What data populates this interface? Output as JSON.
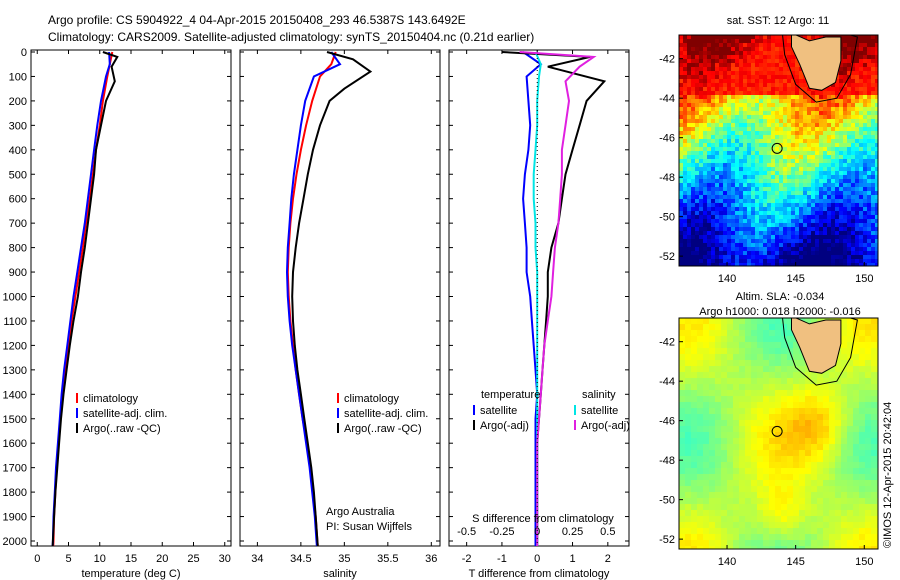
{
  "header": {
    "line1": "Argo profile: CS 5904922_4 04-Apr-2015 20150408_293 46.5387S 143.6492E",
    "line2": "Climatology: CARS2009. Satellite-adjusted climatology: synTS_20150404.nc (0.21d earlier)"
  },
  "chart_data": [
    {
      "type": "line",
      "panel": "temperature",
      "xlabel": "temperature (deg C)",
      "ylabel": "",
      "xlim": [
        -1,
        31
      ],
      "ylim": [
        2060,
        0
      ],
      "y_reversed": true,
      "xticks": [
        "0",
        "5",
        "10",
        "15",
        "20",
        "25",
        "30"
      ],
      "yticks": [
        "0",
        "100",
        "200",
        "300",
        "400",
        "500",
        "600",
        "700",
        "800",
        "900",
        "1000",
        "1100",
        "1200",
        "1300",
        "1400",
        "1500",
        "1600",
        "1700",
        "1800",
        "1900",
        "2000"
      ],
      "legend": [
        "climatology",
        "satellite-adj. clim.",
        "Argo(..raw -QC)"
      ],
      "series": [
        {
          "name": "climatology",
          "color": "#ff0000",
          "x": [
            12.0,
            11.6,
            11.2,
            10.5,
            10.0,
            9.4,
            8.9,
            8.4,
            7.8,
            7.3,
            6.7,
            6.1,
            5.5,
            5.0,
            4.5,
            4.1,
            3.7,
            3.4,
            3.1,
            2.9,
            2.7,
            2.6,
            2.5
          ],
          "y": [
            0,
            50,
            100,
            200,
            300,
            400,
            500,
            600,
            700,
            800,
            900,
            1000,
            1100,
            1200,
            1300,
            1400,
            1500,
            1600,
            1700,
            1800,
            1900,
            2000,
            2050
          ]
        },
        {
          "name": "satellite-adj. clim.",
          "color": "#0000ff",
          "x": [
            11.5,
            11.6,
            11.0,
            10.2,
            9.6,
            9.1,
            8.6,
            8.1,
            7.6,
            7.0,
            6.4,
            5.8,
            5.3,
            4.8,
            4.3,
            3.9,
            3.6,
            3.3,
            3.0,
            2.8,
            2.6,
            2.5,
            2.4
          ],
          "y": [
            0,
            50,
            100,
            200,
            300,
            400,
            500,
            600,
            700,
            800,
            900,
            1000,
            1100,
            1200,
            1300,
            1400,
            1500,
            1600,
            1700,
            1800,
            1900,
            2000,
            2050
          ]
        },
        {
          "name": "Argo(..raw -QC)",
          "color": "#000000",
          "x": [
            10.5,
            12.8,
            11.9,
            12.4,
            11.0,
            10.2,
            9.4,
            9.1,
            8.6,
            8.1,
            7.6,
            7.0,
            6.5,
            5.8,
            5.2,
            4.7,
            4.2,
            3.8,
            3.5,
            3.2,
            2.9,
            2.7,
            2.5,
            2.4
          ],
          "y": [
            0,
            20,
            60,
            120,
            200,
            300,
            400,
            500,
            600,
            700,
            800,
            900,
            1000,
            1100,
            1200,
            1300,
            1400,
            1500,
            1600,
            1700,
            1800,
            1900,
            2000,
            2050
          ]
        }
      ]
    },
    {
      "type": "line",
      "panel": "salinity",
      "xlabel": "salinity",
      "xlim": [
        33.8,
        36.1
      ],
      "ylim": [
        2060,
        0
      ],
      "y_reversed": true,
      "xticks": [
        "34",
        "34.5",
        "35",
        "35.5",
        "36"
      ],
      "legend": [
        "climatology",
        "satellite-adj. clim.",
        "Argo(..raw -QC)"
      ],
      "annotation": [
        "Argo Australia",
        "PI: Susan Wijffels"
      ],
      "series": [
        {
          "name": "climatology",
          "color": "#ff0000",
          "x": [
            34.9,
            34.85,
            34.72,
            34.63,
            34.56,
            34.5,
            34.45,
            34.41,
            34.38,
            34.36,
            34.35,
            34.36,
            34.38,
            34.41,
            34.44,
            34.48,
            34.52,
            34.57,
            34.61,
            34.64,
            34.67,
            34.69,
            34.7
          ],
          "y": [
            0,
            50,
            100,
            200,
            300,
            400,
            500,
            600,
            700,
            800,
            900,
            1000,
            1100,
            1200,
            1300,
            1400,
            1500,
            1600,
            1700,
            1800,
            1900,
            2000,
            2050
          ]
        },
        {
          "name": "satellite-adj. clim.",
          "color": "#0000ff",
          "x": [
            34.85,
            34.95,
            34.65,
            34.55,
            34.5,
            34.46,
            34.42,
            34.39,
            34.37,
            34.35,
            34.34,
            34.35,
            34.37,
            34.4,
            34.44,
            34.48,
            34.52,
            34.56,
            34.6,
            34.63,
            34.66,
            34.68,
            34.69
          ],
          "y": [
            0,
            50,
            100,
            200,
            300,
            400,
            500,
            600,
            700,
            800,
            900,
            1000,
            1100,
            1200,
            1300,
            1400,
            1500,
            1600,
            1700,
            1800,
            1900,
            2000,
            2050
          ]
        },
        {
          "name": "Argo(..raw -QC)",
          "color": "#000000",
          "x": [
            34.8,
            35.1,
            35.3,
            35.0,
            34.83,
            34.72,
            34.64,
            34.58,
            34.53,
            34.48,
            34.44,
            34.41,
            34.4,
            34.41,
            34.43,
            34.46,
            34.5,
            34.54,
            34.58,
            34.62,
            34.65,
            34.67,
            34.69,
            34.7
          ],
          "y": [
            0,
            30,
            80,
            150,
            200,
            300,
            400,
            500,
            600,
            700,
            800,
            900,
            1000,
            1100,
            1200,
            1300,
            1400,
            1500,
            1600,
            1700,
            1800,
            1900,
            2000,
            2050
          ]
        }
      ]
    },
    {
      "type": "line",
      "panel": "difference",
      "xlabel": "T difference from climatology",
      "xlabel_top": "S difference from climatology",
      "xlim": [
        -2.5,
        2.6
      ],
      "ylim": [
        2060,
        0
      ],
      "y_reversed": true,
      "xticks": [
        "-2",
        "-1",
        "0",
        "1",
        "2"
      ],
      "xticks_top": [
        "-0.5",
        "-0.25",
        "0",
        "0.25",
        "0.5"
      ],
      "legend": {
        "temperature": [
          "satellite",
          "Argo(-adj)"
        ],
        "salinity": [
          "satellite",
          "Argo(-adj)"
        ]
      },
      "legend_titles": [
        "temperature",
        "salinity"
      ],
      "series": [
        {
          "name": "temperature satellite",
          "color": "#0000ff",
          "x": [
            -0.4,
            0.1,
            -0.3,
            -0.25,
            -0.2,
            -0.25,
            -0.35,
            -0.4,
            -0.35,
            -0.3,
            -0.3,
            -0.2,
            -0.15,
            -0.1,
            -0.05,
            0.0,
            -0.05,
            -0.05,
            -0.05,
            -0.05,
            -0.05,
            -0.05,
            -0.05
          ],
          "y": [
            0,
            50,
            100,
            200,
            300,
            400,
            500,
            600,
            700,
            800,
            900,
            1000,
            1100,
            1200,
            1300,
            1400,
            1500,
            1600,
            1700,
            1800,
            1900,
            2000,
            2050
          ]
        },
        {
          "name": "temperature Argo(-adj)",
          "color": "#000000",
          "x": [
            -1.0,
            1.5,
            0.3,
            1.9,
            1.4,
            1.2,
            1.0,
            0.8,
            0.7,
            0.6,
            0.4,
            0.3,
            0.3,
            0.25,
            0.2,
            0.15,
            0.1,
            0.05,
            0.0,
            0.0,
            0.0,
            0.0,
            0.0,
            0.0
          ],
          "y": [
            0,
            20,
            60,
            120,
            200,
            300,
            400,
            500,
            600,
            700,
            800,
            900,
            1000,
            1100,
            1200,
            1300,
            1400,
            1500,
            1600,
            1700,
            1800,
            1900,
            2000,
            2050
          ]
        },
        {
          "name": "salinity satellite",
          "color": "#00e5e5",
          "x": [
            -0.05,
            0.1,
            0.05,
            0.0,
            0.0,
            -0.05,
            -0.1,
            -0.1,
            -0.05,
            -0.05,
            0.0,
            0.0,
            0.0,
            0.0,
            0.0,
            0.0,
            0.0,
            0.0,
            0.0,
            0.0,
            0.0,
            0.0
          ],
          "y": [
            0,
            50,
            100,
            200,
            300,
            400,
            500,
            600,
            700,
            800,
            900,
            1000,
            1100,
            1200,
            1300,
            1400,
            1500,
            1700,
            1800,
            1900,
            2000,
            2050
          ]
        },
        {
          "name": "salinity Argo(-adj)",
          "color": "#e020e0",
          "x": [
            -0.5,
            1.6,
            1.2,
            0.8,
            0.9,
            0.8,
            0.7,
            0.7,
            0.65,
            0.6,
            0.5,
            0.45,
            0.4,
            0.3,
            0.2,
            0.15,
            0.1,
            0.05,
            0.0,
            0.0,
            0.0,
            0.0,
            0.0,
            0.0
          ],
          "y": [
            0,
            20,
            60,
            120,
            200,
            300,
            400,
            500,
            600,
            700,
            800,
            900,
            1000,
            1100,
            1200,
            1300,
            1400,
            1500,
            1600,
            1700,
            1800,
            1900,
            2000,
            2050
          ]
        }
      ]
    },
    {
      "type": "heatmap",
      "panel": "sst_map",
      "title": "sat. SST: 12 Argo: 11",
      "xticks": [
        "140",
        "145",
        "150"
      ],
      "yticks": [
        "-42",
        "-44",
        "-46",
        "-48",
        "-50",
        "-52"
      ],
      "xlim": [
        136.5,
        151
      ],
      "ylim": [
        -52.5,
        -40.8
      ],
      "argo_position": [
        143.65,
        -46.54
      ]
    },
    {
      "type": "heatmap",
      "panel": "sla_map",
      "title": "Altim. SLA: -0.034",
      "subtitle": "Argo h1000: 0.018 h2000: -0.016",
      "xticks": [
        "140",
        "145",
        "150"
      ],
      "yticks": [
        "-42",
        "-44",
        "-46",
        "-48",
        "-50",
        "-52"
      ],
      "xlim": [
        136.5,
        151
      ],
      "ylim": [
        -52.5,
        -40.8
      ],
      "argo_position": [
        143.65,
        -46.54
      ]
    }
  ],
  "credit": "©IMOS 12-Apr-2015 20:42:04"
}
